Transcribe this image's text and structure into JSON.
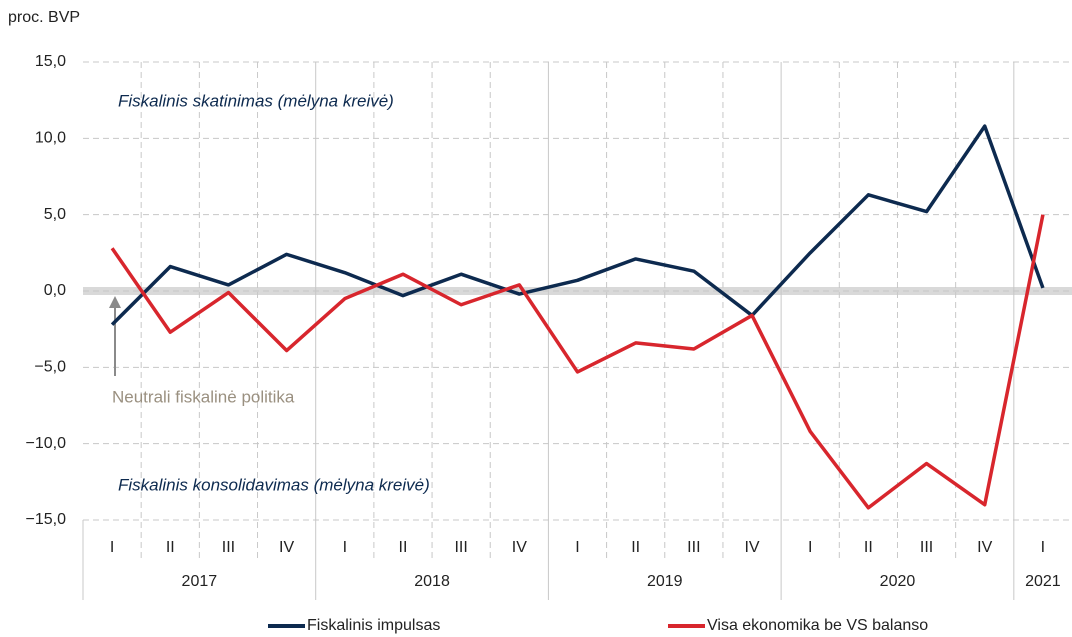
{
  "chart_data": {
    "type": "line",
    "y_label": "proc. BVP",
    "annotations": [
      "Fiskalinis skatinimas (mėlyna kreivė)",
      "Fiskalinis konsolidavimas (mėlyna kreivė)",
      "Neutrali fiskalinė politika"
    ],
    "categories": [
      "I",
      "II",
      "III",
      "IV",
      "I",
      "II",
      "III",
      "IV",
      "I",
      "II",
      "III",
      "IV",
      "I",
      "II",
      "III",
      "IV",
      "I"
    ],
    "years": [
      "2017",
      "2018",
      "2019",
      "2020",
      "2021"
    ],
    "series": [
      {
        "name": "Fiskalinis impulsas",
        "color": "#0d2a4f",
        "values": [
          -2.2,
          1.6,
          0.4,
          2.4,
          1.2,
          -0.3,
          1.1,
          -0.2,
          0.7,
          2.1,
          1.3,
          -1.6,
          2.5,
          6.3,
          5.2,
          10.8,
          0.2
        ]
      },
      {
        "name": "Visa ekonomika be VS balanso",
        "color": "#d8262d",
        "values": [
          2.8,
          -2.7,
          -0.1,
          -3.9,
          -0.5,
          1.1,
          -0.9,
          0.4,
          -5.3,
          -3.4,
          -3.8,
          -1.6,
          -9.2,
          -14.2,
          -11.3,
          -14.0,
          5.0
        ]
      }
    ],
    "ylim": [
      -15,
      15
    ],
    "yticks": [
      {
        "value": -15,
        "label": "−15,0"
      },
      {
        "value": -10,
        "label": "−10,0"
      },
      {
        "value": -5,
        "label": "−5,0"
      },
      {
        "value": 0,
        "label": "0,0"
      },
      {
        "value": 5,
        "label": "5,0"
      },
      {
        "value": 10,
        "label": "10,0"
      },
      {
        "value": 15,
        "label": "15,0"
      }
    ],
    "grid": true
  }
}
